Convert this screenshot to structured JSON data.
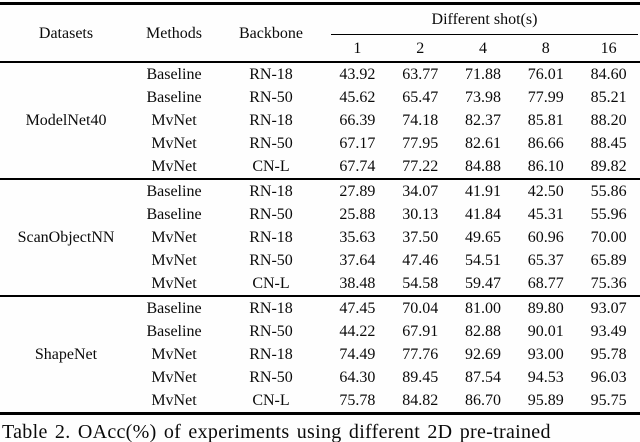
{
  "table": {
    "header": {
      "datasets": "Datasets",
      "methods": "Methods",
      "backbone": "Backbone",
      "shots_group": "Different shot(s)",
      "shots": [
        "1",
        "2",
        "4",
        "8",
        "16"
      ]
    },
    "groups": [
      {
        "dataset": "ModelNet40",
        "rows": [
          {
            "method": "Baseline",
            "backbone": "RN-18",
            "values": [
              "43.92",
              "63.77",
              "71.88",
              "76.01",
              "84.60"
            ]
          },
          {
            "method": "Baseline",
            "backbone": "RN-50",
            "values": [
              "45.62",
              "65.47",
              "73.98",
              "77.99",
              "85.21"
            ]
          },
          {
            "method": "MvNet",
            "backbone": "RN-18",
            "values": [
              "66.39",
              "74.18",
              "82.37",
              "85.81",
              "88.20"
            ]
          },
          {
            "method": "MvNet",
            "backbone": "RN-50",
            "values": [
              "67.17",
              "77.95",
              "82.61",
              "86.66",
              "88.45"
            ]
          },
          {
            "method": "MvNet",
            "backbone": "CN-L",
            "values": [
              "67.74",
              "77.22",
              "84.88",
              "86.10",
              "89.82"
            ]
          }
        ]
      },
      {
        "dataset": "ScanObjectNN",
        "rows": [
          {
            "method": "Baseline",
            "backbone": "RN-18",
            "values": [
              "27.89",
              "34.07",
              "41.91",
              "42.50",
              "55.86"
            ]
          },
          {
            "method": "Baseline",
            "backbone": "RN-50",
            "values": [
              "25.88",
              "30.13",
              "41.84",
              "45.31",
              "55.96"
            ]
          },
          {
            "method": "MvNet",
            "backbone": "RN-18",
            "values": [
              "35.63",
              "37.50",
              "49.65",
              "60.96",
              "70.00"
            ]
          },
          {
            "method": "MvNet",
            "backbone": "RN-50",
            "values": [
              "37.64",
              "47.46",
              "54.51",
              "65.37",
              "65.89"
            ]
          },
          {
            "method": "MvNet",
            "backbone": "CN-L",
            "values": [
              "38.48",
              "54.58",
              "59.47",
              "68.77",
              "75.36"
            ]
          }
        ]
      },
      {
        "dataset": "ShapeNet",
        "rows": [
          {
            "method": "Baseline",
            "backbone": "RN-18",
            "values": [
              "47.45",
              "70.04",
              "81.00",
              "89.80",
              "93.07"
            ]
          },
          {
            "method": "Baseline",
            "backbone": "RN-50",
            "values": [
              "44.22",
              "67.91",
              "82.88",
              "90.01",
              "93.49"
            ]
          },
          {
            "method": "MvNet",
            "backbone": "RN-18",
            "values": [
              "74.49",
              "77.76",
              "92.69",
              "93.00",
              "95.78"
            ]
          },
          {
            "method": "MvNet",
            "backbone": "RN-50",
            "values": [
              "64.30",
              "89.45",
              "87.54",
              "94.53",
              "96.03"
            ]
          },
          {
            "method": "MvNet",
            "backbone": "CN-L",
            "values": [
              "75.78",
              "84.82",
              "86.70",
              "95.89",
              "95.75"
            ]
          }
        ]
      }
    ]
  },
  "caption": "Table 2. OAcc(%) of experiments using different 2D pre-trained"
}
